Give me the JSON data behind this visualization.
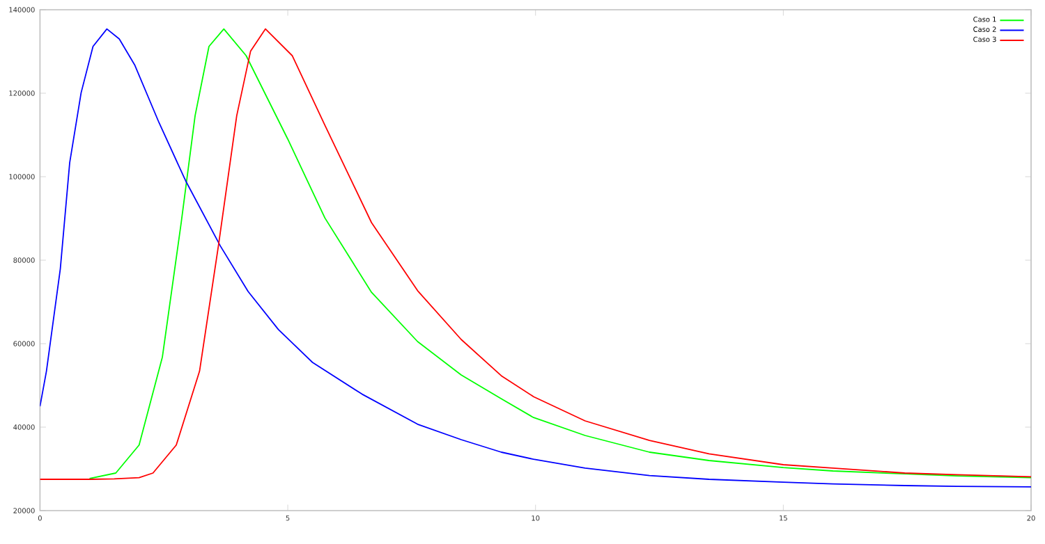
{
  "chart_data": {
    "type": "line",
    "xlim": [
      0,
      20
    ],
    "ylim": [
      20000,
      140000
    ],
    "xticks": [
      0,
      5,
      10,
      15,
      20
    ],
    "yticks": [
      20000,
      40000,
      60000,
      80000,
      100000,
      120000,
      140000
    ],
    "legend": "top right",
    "grid": false,
    "marker": "none",
    "line_style": "solid",
    "series": [
      {
        "name": "Caso 1",
        "color": "#00ff00",
        "x": [
          1.0,
          1.53,
          2.0,
          2.47,
          2.85,
          3.13,
          3.41,
          3.71,
          4.16,
          5.0,
          5.75,
          6.69,
          7.62,
          8.5,
          9.31,
          9.96,
          11,
          12.3,
          13.5,
          15,
          16,
          17.45,
          18.5,
          20
        ],
        "values": [
          27700,
          29000,
          35700,
          56800,
          89000,
          114600,
          131200,
          135400,
          129000,
          109000,
          90100,
          72300,
          60500,
          52500,
          46800,
          42300,
          38000,
          34000,
          32000,
          30300,
          29500,
          28800,
          28300,
          27900
        ]
      },
      {
        "name": "Caso 2",
        "color": "#0000ff",
        "x": [
          0,
          0.13,
          0.41,
          0.6,
          0.83,
          1.07,
          1.35,
          1.6,
          1.91,
          2.4,
          2.94,
          3.64,
          4.2,
          4.81,
          5.5,
          6.5,
          7.62,
          8.5,
          9.31,
          9.96,
          11,
          12.3,
          13.5,
          15,
          16,
          17.45,
          18.5,
          20
        ],
        "values": [
          45000,
          53400,
          77900,
          103400,
          120100,
          131200,
          135400,
          133000,
          126800,
          113000,
          99000,
          83400,
          72500,
          63400,
          55500,
          47900,
          40700,
          37000,
          34000,
          32300,
          30200,
          28400,
          27500,
          26800,
          26400,
          26000,
          25800,
          25700
        ]
      },
      {
        "name": "Caso 3",
        "color": "#ff0000",
        "x": [
          0,
          0.5,
          1.0,
          1.5,
          2.0,
          2.28,
          2.75,
          3.22,
          3.6,
          3.97,
          4.25,
          4.55,
          5.09,
          5.75,
          6.69,
          7.62,
          8.5,
          9.31,
          9.96,
          11,
          12.3,
          13.5,
          15,
          16,
          17.45,
          18.5,
          20
        ],
        "values": [
          27500,
          27500,
          27500,
          27600,
          27900,
          29000,
          35700,
          53400,
          83400,
          114600,
          130100,
          135400,
          129000,
          112300,
          89000,
          72700,
          61000,
          52300,
          47300,
          41500,
          36800,
          33600,
          31000,
          30200,
          29000,
          28600,
          28100
        ]
      }
    ]
  }
}
